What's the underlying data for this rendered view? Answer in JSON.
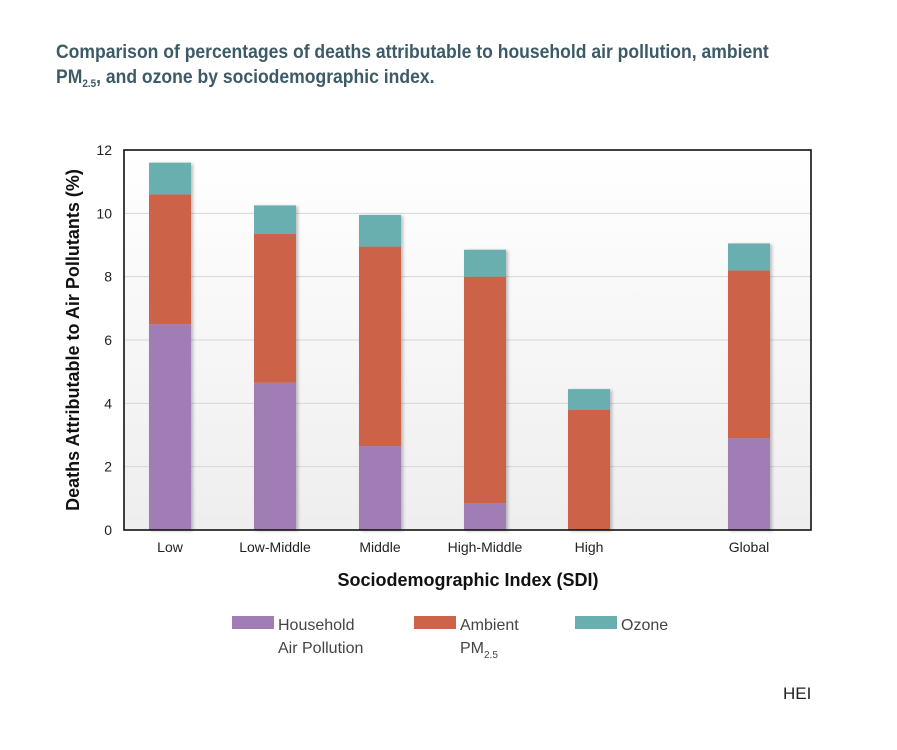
{
  "title": {
    "line1": "Comparison of percentages of deaths attributable to household air pollution, ambient",
    "line2_pre": "PM",
    "line2_sub": "2.5",
    "line2_post": ", and ozone by sociodemographic index."
  },
  "credit": "HEI",
  "chart_data": {
    "type": "bar",
    "stacked": true,
    "categories": [
      "Low",
      "Low-Middle",
      "Middle",
      "High-Middle",
      "High",
      "Global"
    ],
    "series": [
      {
        "name": "Household Air Pollution",
        "color": "#a07db5",
        "values": [
          6.5,
          4.65,
          2.65,
          0.85,
          0.0,
          2.9
        ]
      },
      {
        "name": "Ambient PM2.5",
        "color": "#cc644a",
        "values": [
          4.1,
          4.7,
          6.3,
          7.15,
          3.8,
          5.3
        ]
      },
      {
        "name": "Ozone",
        "color": "#6aafaf",
        "values": [
          1.0,
          0.9,
          1.0,
          0.85,
          0.65,
          0.85
        ]
      }
    ],
    "xlabel": "Sociodemographic Index (SDI)",
    "ylabel": "Deaths Attributable to Air Pollutants (%)",
    "ylim": [
      0,
      12
    ],
    "yticks": [
      0,
      2,
      4,
      6,
      8,
      10,
      12
    ],
    "grid": true,
    "legend": {
      "placement": "bottom",
      "entries": [
        {
          "lines": [
            "Household",
            "Air Pollution"
          ],
          "color": "#a07db5"
        },
        {
          "lines": [
            "Ambient",
            "PM"
          ],
          "sub": "2.5",
          "color": "#cc644a"
        },
        {
          "lines": [
            "Ozone"
          ],
          "color": "#6aafaf"
        }
      ]
    }
  }
}
